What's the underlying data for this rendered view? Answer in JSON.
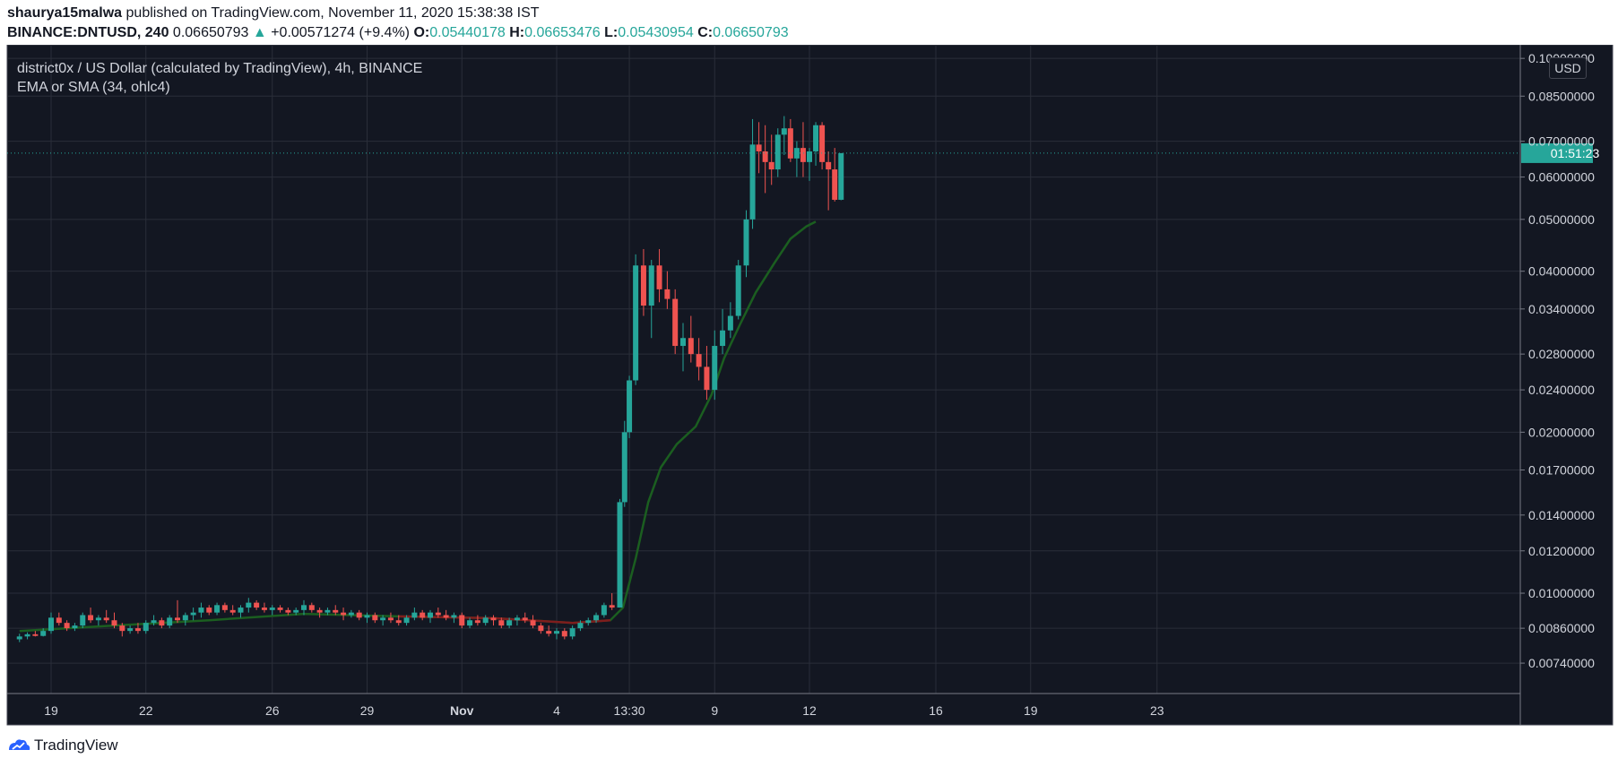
{
  "header": {
    "author": "shaurya15malwa",
    "published": "published on TradingView.com, November 11, 2020 15:38:38 IST",
    "symbol": "BINANCE:DNTUSD, 240",
    "last": "0.06650793",
    "arrow": "▲",
    "change": "+0.00571274 (+9.4%)",
    "o_label": "O:",
    "o_value": "0.05440178",
    "h_label": "H:",
    "h_value": "0.06653476",
    "l_label": "L:",
    "l_value": "0.05430954",
    "c_label": "C:",
    "c_value": "0.06650793"
  },
  "legend": {
    "title": "district0x / US Dollar (calculated by TradingView), 4h, BINANCE",
    "indicator": "EMA or SMA (34, ohlc4)"
  },
  "currency_button": "USD",
  "countdown": "01:51:23",
  "footer": {
    "brand": "TradingView"
  },
  "colors": {
    "background": "#131722",
    "up": "#26a69a",
    "down": "#ef5350",
    "ma_green": "#1b5e20",
    "ma_red": "#7f1d1d",
    "grid": "#2a2e39",
    "text": "#d1d4dc"
  },
  "chart_data": {
    "type": "candlestick",
    "y_scale": "log",
    "ylim": [
      0.0068,
      0.104
    ],
    "y_ticks": [
      {
        "value": 0.1,
        "label": "0.10000000"
      },
      {
        "value": 0.085,
        "label": "0.08500000"
      },
      {
        "value": 0.07,
        "label": "0.07000000"
      },
      {
        "value": 0.06,
        "label": "0.06000000"
      },
      {
        "value": 0.05,
        "label": "0.05000000"
      },
      {
        "value": 0.04,
        "label": "0.04000000"
      },
      {
        "value": 0.034,
        "label": "0.03400000"
      },
      {
        "value": 0.028,
        "label": "0.02800000"
      },
      {
        "value": 0.024,
        "label": "0.02400000"
      },
      {
        "value": 0.02,
        "label": "0.02000000"
      },
      {
        "value": 0.017,
        "label": "0.01700000"
      },
      {
        "value": 0.014,
        "label": "0.01400000"
      },
      {
        "value": 0.012,
        "label": "0.01200000"
      },
      {
        "value": 0.01,
        "label": "0.01000000"
      },
      {
        "value": 0.0086,
        "label": "0.00860000"
      },
      {
        "value": 0.0074,
        "label": "0.00740000"
      }
    ],
    "x_ticks": [
      {
        "label": "19",
        "day": 0,
        "bold": false
      },
      {
        "label": "22",
        "day": 3,
        "bold": false
      },
      {
        "label": "26",
        "day": 7,
        "bold": false
      },
      {
        "label": "29",
        "day": 10,
        "bold": false
      },
      {
        "label": "Nov",
        "day": 13,
        "bold": true
      },
      {
        "label": "4",
        "day": 16,
        "bold": false
      },
      {
        "label": "13:30",
        "day": 18.3,
        "bold": false
      },
      {
        "label": "9",
        "day": 21,
        "bold": false
      },
      {
        "label": "12",
        "day": 24,
        "bold": false
      },
      {
        "label": "16",
        "day": 28,
        "bold": false
      },
      {
        "label": "19",
        "day": 31,
        "bold": false
      },
      {
        "label": "23",
        "day": 35,
        "bold": false
      }
    ],
    "current_price": 0.0665,
    "series": [
      {
        "name": "EMA or SMA (34, ohlc4)"
      }
    ],
    "ma_points": [
      {
        "day": -1.0,
        "value": 0.0085
      },
      {
        "day": 2.0,
        "value": 0.0087
      },
      {
        "day": 5.0,
        "value": 0.0089
      },
      {
        "day": 8.0,
        "value": 0.00915
      },
      {
        "day": 11.0,
        "value": 0.00905
      },
      {
        "day": 14.0,
        "value": 0.00898
      },
      {
        "day": 16.5,
        "value": 0.0088
      },
      {
        "day": 17.7,
        "value": 0.0089
      },
      {
        "day": 18.1,
        "value": 0.0094
      },
      {
        "day": 18.5,
        "value": 0.0116
      },
      {
        "day": 18.9,
        "value": 0.0148
      },
      {
        "day": 19.3,
        "value": 0.0172
      },
      {
        "day": 19.8,
        "value": 0.019
      },
      {
        "day": 20.4,
        "value": 0.0205
      },
      {
        "day": 20.9,
        "value": 0.0235
      },
      {
        "day": 21.3,
        "value": 0.0275
      },
      {
        "day": 21.8,
        "value": 0.0318
      },
      {
        "day": 22.3,
        "value": 0.0365
      },
      {
        "day": 22.9,
        "value": 0.0415
      },
      {
        "day": 23.4,
        "value": 0.046
      },
      {
        "day": 23.9,
        "value": 0.0485
      },
      {
        "day": 24.2,
        "value": 0.0495
      }
    ],
    "candles": [
      {
        "day": -1.0,
        "o": 0.0082,
        "h": 0.0084,
        "l": 0.0081,
        "c": 0.0083
      },
      {
        "day": -0.75,
        "o": 0.0083,
        "h": 0.00845,
        "l": 0.0082,
        "c": 0.00838
      },
      {
        "day": -0.5,
        "o": 0.00838,
        "h": 0.0085,
        "l": 0.0083,
        "c": 0.00832
      },
      {
        "day": -0.25,
        "o": 0.00832,
        "h": 0.0086,
        "l": 0.0083,
        "c": 0.0085
      },
      {
        "day": 0.0,
        "o": 0.0085,
        "h": 0.0092,
        "l": 0.0084,
        "c": 0.009
      },
      {
        "day": 0.25,
        "o": 0.009,
        "h": 0.0092,
        "l": 0.0087,
        "c": 0.0088
      },
      {
        "day": 0.5,
        "o": 0.0088,
        "h": 0.0089,
        "l": 0.0085,
        "c": 0.0086
      },
      {
        "day": 0.75,
        "o": 0.0086,
        "h": 0.0088,
        "l": 0.0085,
        "c": 0.0087
      },
      {
        "day": 1.0,
        "o": 0.0087,
        "h": 0.0092,
        "l": 0.0086,
        "c": 0.0091
      },
      {
        "day": 1.25,
        "o": 0.0091,
        "h": 0.0094,
        "l": 0.0088,
        "c": 0.0089
      },
      {
        "day": 1.5,
        "o": 0.0089,
        "h": 0.0091,
        "l": 0.0087,
        "c": 0.009
      },
      {
        "day": 1.75,
        "o": 0.009,
        "h": 0.0093,
        "l": 0.0088,
        "c": 0.0089
      },
      {
        "day": 2.0,
        "o": 0.0089,
        "h": 0.0092,
        "l": 0.0086,
        "c": 0.0087
      },
      {
        "day": 2.25,
        "o": 0.0087,
        "h": 0.0088,
        "l": 0.0083,
        "c": 0.0085
      },
      {
        "day": 2.5,
        "o": 0.0085,
        "h": 0.0087,
        "l": 0.0084,
        "c": 0.0086
      },
      {
        "day": 2.75,
        "o": 0.0086,
        "h": 0.0088,
        "l": 0.0084,
        "c": 0.0085
      },
      {
        "day": 3.0,
        "o": 0.0085,
        "h": 0.0089,
        "l": 0.0084,
        "c": 0.0088
      },
      {
        "day": 3.25,
        "o": 0.0088,
        "h": 0.0091,
        "l": 0.0087,
        "c": 0.0089
      },
      {
        "day": 3.5,
        "o": 0.0089,
        "h": 0.009,
        "l": 0.0086,
        "c": 0.0087
      },
      {
        "day": 3.75,
        "o": 0.0087,
        "h": 0.0091,
        "l": 0.0086,
        "c": 0.009
      },
      {
        "day": 4.0,
        "o": 0.009,
        "h": 0.0097,
        "l": 0.0088,
        "c": 0.0089
      },
      {
        "day": 4.25,
        "o": 0.0089,
        "h": 0.0092,
        "l": 0.0087,
        "c": 0.0091
      },
      {
        "day": 4.5,
        "o": 0.0091,
        "h": 0.0094,
        "l": 0.0089,
        "c": 0.0092
      },
      {
        "day": 4.75,
        "o": 0.0092,
        "h": 0.0096,
        "l": 0.009,
        "c": 0.0094
      },
      {
        "day": 5.0,
        "o": 0.0094,
        "h": 0.0095,
        "l": 0.0091,
        "c": 0.0092
      },
      {
        "day": 5.25,
        "o": 0.0092,
        "h": 0.0096,
        "l": 0.0091,
        "c": 0.0095
      },
      {
        "day": 5.5,
        "o": 0.0095,
        "h": 0.0096,
        "l": 0.0092,
        "c": 0.0093
      },
      {
        "day": 5.75,
        "o": 0.0093,
        "h": 0.0095,
        "l": 0.0091,
        "c": 0.0092
      },
      {
        "day": 6.0,
        "o": 0.0092,
        "h": 0.0095,
        "l": 0.009,
        "c": 0.0094
      },
      {
        "day": 6.25,
        "o": 0.0094,
        "h": 0.0098,
        "l": 0.0092,
        "c": 0.0096
      },
      {
        "day": 6.5,
        "o": 0.0096,
        "h": 0.0097,
        "l": 0.0093,
        "c": 0.0094
      },
      {
        "day": 6.75,
        "o": 0.0094,
        "h": 0.0096,
        "l": 0.0092,
        "c": 0.0093
      },
      {
        "day": 7.0,
        "o": 0.0093,
        "h": 0.0095,
        "l": 0.0091,
        "c": 0.0094
      },
      {
        "day": 7.25,
        "o": 0.0094,
        "h": 0.0095,
        "l": 0.0092,
        "c": 0.0093
      },
      {
        "day": 7.5,
        "o": 0.0093,
        "h": 0.0094,
        "l": 0.0091,
        "c": 0.0092
      },
      {
        "day": 7.75,
        "o": 0.0092,
        "h": 0.0094,
        "l": 0.0091,
        "c": 0.0093
      },
      {
        "day": 8.0,
        "o": 0.0093,
        "h": 0.0097,
        "l": 0.0091,
        "c": 0.0095
      },
      {
        "day": 8.25,
        "o": 0.0095,
        "h": 0.0096,
        "l": 0.0092,
        "c": 0.0093
      },
      {
        "day": 8.5,
        "o": 0.0093,
        "h": 0.0094,
        "l": 0.009,
        "c": 0.0092
      },
      {
        "day": 8.75,
        "o": 0.0092,
        "h": 0.0094,
        "l": 0.0091,
        "c": 0.0093
      },
      {
        "day": 9.0,
        "o": 0.0093,
        "h": 0.0095,
        "l": 0.0091,
        "c": 0.0092
      },
      {
        "day": 9.25,
        "o": 0.0092,
        "h": 0.0094,
        "l": 0.0089,
        "c": 0.0091
      },
      {
        "day": 9.5,
        "o": 0.0091,
        "h": 0.0093,
        "l": 0.009,
        "c": 0.0092
      },
      {
        "day": 9.75,
        "o": 0.0092,
        "h": 0.0093,
        "l": 0.0089,
        "c": 0.009
      },
      {
        "day": 10.0,
        "o": 0.009,
        "h": 0.0092,
        "l": 0.0088,
        "c": 0.0091
      },
      {
        "day": 10.25,
        "o": 0.0091,
        "h": 0.0092,
        "l": 0.0088,
        "c": 0.0089
      },
      {
        "day": 10.5,
        "o": 0.0089,
        "h": 0.0091,
        "l": 0.0087,
        "c": 0.009
      },
      {
        "day": 10.75,
        "o": 0.009,
        "h": 0.0092,
        "l": 0.0088,
        "c": 0.0089
      },
      {
        "day": 11.0,
        "o": 0.0089,
        "h": 0.0091,
        "l": 0.0087,
        "c": 0.0088
      },
      {
        "day": 11.25,
        "o": 0.0088,
        "h": 0.0091,
        "l": 0.0087,
        "c": 0.009
      },
      {
        "day": 11.5,
        "o": 0.009,
        "h": 0.0094,
        "l": 0.0089,
        "c": 0.0092
      },
      {
        "day": 11.75,
        "o": 0.0092,
        "h": 0.0093,
        "l": 0.0089,
        "c": 0.009
      },
      {
        "day": 12.0,
        "o": 0.009,
        "h": 0.0093,
        "l": 0.0088,
        "c": 0.0092
      },
      {
        "day": 12.25,
        "o": 0.0092,
        "h": 0.0094,
        "l": 0.009,
        "c": 0.0091
      },
      {
        "day": 12.5,
        "o": 0.0091,
        "h": 0.0093,
        "l": 0.0089,
        "c": 0.009
      },
      {
        "day": 12.75,
        "o": 0.009,
        "h": 0.0092,
        "l": 0.0088,
        "c": 0.0091
      },
      {
        "day": 13.0,
        "o": 0.0091,
        "h": 0.0092,
        "l": 0.0086,
        "c": 0.0087
      },
      {
        "day": 13.25,
        "o": 0.0087,
        "h": 0.009,
        "l": 0.0086,
        "c": 0.0089
      },
      {
        "day": 13.5,
        "o": 0.0089,
        "h": 0.0091,
        "l": 0.0087,
        "c": 0.0088
      },
      {
        "day": 13.75,
        "o": 0.0088,
        "h": 0.0091,
        "l": 0.0087,
        "c": 0.009
      },
      {
        "day": 14.0,
        "o": 0.009,
        "h": 0.0091,
        "l": 0.0087,
        "c": 0.0089
      },
      {
        "day": 14.25,
        "o": 0.0089,
        "h": 0.009,
        "l": 0.0086,
        "c": 0.0087
      },
      {
        "day": 14.5,
        "o": 0.0087,
        "h": 0.009,
        "l": 0.0086,
        "c": 0.0089
      },
      {
        "day": 14.75,
        "o": 0.0089,
        "h": 0.0091,
        "l": 0.0087,
        "c": 0.009
      },
      {
        "day": 15.0,
        "o": 0.009,
        "h": 0.0092,
        "l": 0.0088,
        "c": 0.0089
      },
      {
        "day": 15.25,
        "o": 0.0089,
        "h": 0.0091,
        "l": 0.0086,
        "c": 0.0087
      },
      {
        "day": 15.5,
        "o": 0.0087,
        "h": 0.0088,
        "l": 0.0084,
        "c": 0.0085
      },
      {
        "day": 15.75,
        "o": 0.0085,
        "h": 0.0087,
        "l": 0.0083,
        "c": 0.0084
      },
      {
        "day": 16.0,
        "o": 0.0084,
        "h": 0.0086,
        "l": 0.0082,
        "c": 0.0085
      },
      {
        "day": 16.25,
        "o": 0.0085,
        "h": 0.0086,
        "l": 0.0082,
        "c": 0.0083
      },
      {
        "day": 16.5,
        "o": 0.0083,
        "h": 0.0087,
        "l": 0.0082,
        "c": 0.0086
      },
      {
        "day": 16.75,
        "o": 0.0086,
        "h": 0.0089,
        "l": 0.0085,
        "c": 0.0088
      },
      {
        "day": 17.0,
        "o": 0.0088,
        "h": 0.009,
        "l": 0.0087,
        "c": 0.0089
      },
      {
        "day": 17.25,
        "o": 0.0089,
        "h": 0.0092,
        "l": 0.0088,
        "c": 0.0091
      },
      {
        "day": 17.5,
        "o": 0.0091,
        "h": 0.0096,
        "l": 0.009,
        "c": 0.0095
      },
      {
        "day": 17.75,
        "o": 0.0095,
        "h": 0.01,
        "l": 0.0093,
        "c": 0.0094
      },
      {
        "day": 18.0,
        "o": 0.0094,
        "h": 0.015,
        "l": 0.0094,
        "c": 0.0148
      },
      {
        "day": 18.15,
        "o": 0.0148,
        "h": 0.021,
        "l": 0.0145,
        "c": 0.02
      },
      {
        "day": 18.3,
        "o": 0.02,
        "h": 0.0255,
        "l": 0.0195,
        "c": 0.025
      },
      {
        "day": 18.5,
        "o": 0.025,
        "h": 0.043,
        "l": 0.0245,
        "c": 0.041
      },
      {
        "day": 18.75,
        "o": 0.041,
        "h": 0.044,
        "l": 0.033,
        "c": 0.0345
      },
      {
        "day": 19.0,
        "o": 0.0345,
        "h": 0.042,
        "l": 0.03,
        "c": 0.041
      },
      {
        "day": 19.25,
        "o": 0.041,
        "h": 0.044,
        "l": 0.035,
        "c": 0.037
      },
      {
        "day": 19.5,
        "o": 0.037,
        "h": 0.04,
        "l": 0.034,
        "c": 0.0355
      },
      {
        "day": 19.75,
        "o": 0.0355,
        "h": 0.037,
        "l": 0.028,
        "c": 0.029
      },
      {
        "day": 20.0,
        "o": 0.029,
        "h": 0.032,
        "l": 0.026,
        "c": 0.03
      },
      {
        "day": 20.25,
        "o": 0.03,
        "h": 0.033,
        "l": 0.027,
        "c": 0.028
      },
      {
        "day": 20.5,
        "o": 0.028,
        "h": 0.03,
        "l": 0.025,
        "c": 0.0265
      },
      {
        "day": 20.75,
        "o": 0.0265,
        "h": 0.029,
        "l": 0.023,
        "c": 0.024
      },
      {
        "day": 21.0,
        "o": 0.024,
        "h": 0.031,
        "l": 0.023,
        "c": 0.029
      },
      {
        "day": 21.25,
        "o": 0.029,
        "h": 0.034,
        "l": 0.028,
        "c": 0.031
      },
      {
        "day": 21.5,
        "o": 0.031,
        "h": 0.035,
        "l": 0.03,
        "c": 0.033
      },
      {
        "day": 21.75,
        "o": 0.033,
        "h": 0.042,
        "l": 0.0325,
        "c": 0.041
      },
      {
        "day": 22.0,
        "o": 0.041,
        "h": 0.052,
        "l": 0.039,
        "c": 0.05
      },
      {
        "day": 22.2,
        "o": 0.05,
        "h": 0.077,
        "l": 0.048,
        "c": 0.069
      },
      {
        "day": 22.4,
        "o": 0.069,
        "h": 0.076,
        "l": 0.061,
        "c": 0.067
      },
      {
        "day": 22.6,
        "o": 0.067,
        "h": 0.075,
        "l": 0.056,
        "c": 0.064
      },
      {
        "day": 22.8,
        "o": 0.064,
        "h": 0.072,
        "l": 0.058,
        "c": 0.062
      },
      {
        "day": 23.0,
        "o": 0.062,
        "h": 0.074,
        "l": 0.06,
        "c": 0.072
      },
      {
        "day": 23.2,
        "o": 0.072,
        "h": 0.078,
        "l": 0.066,
        "c": 0.074
      },
      {
        "day": 23.4,
        "o": 0.074,
        "h": 0.077,
        "l": 0.064,
        "c": 0.065
      },
      {
        "day": 23.6,
        "o": 0.065,
        "h": 0.07,
        "l": 0.06,
        "c": 0.068
      },
      {
        "day": 23.8,
        "o": 0.068,
        "h": 0.076,
        "l": 0.06,
        "c": 0.064
      },
      {
        "day": 24.0,
        "o": 0.064,
        "h": 0.068,
        "l": 0.059,
        "c": 0.067
      },
      {
        "day": 24.2,
        "o": 0.067,
        "h": 0.076,
        "l": 0.063,
        "c": 0.075
      },
      {
        "day": 24.4,
        "o": 0.075,
        "h": 0.076,
        "l": 0.062,
        "c": 0.064
      },
      {
        "day": 24.6,
        "o": 0.064,
        "h": 0.067,
        "l": 0.052,
        "c": 0.062
      },
      {
        "day": 24.8,
        "o": 0.062,
        "h": 0.068,
        "l": 0.054,
        "c": 0.0544
      },
      {
        "day": 25.0,
        "o": 0.0544,
        "h": 0.0665,
        "l": 0.0543,
        "c": 0.0665
      }
    ]
  }
}
